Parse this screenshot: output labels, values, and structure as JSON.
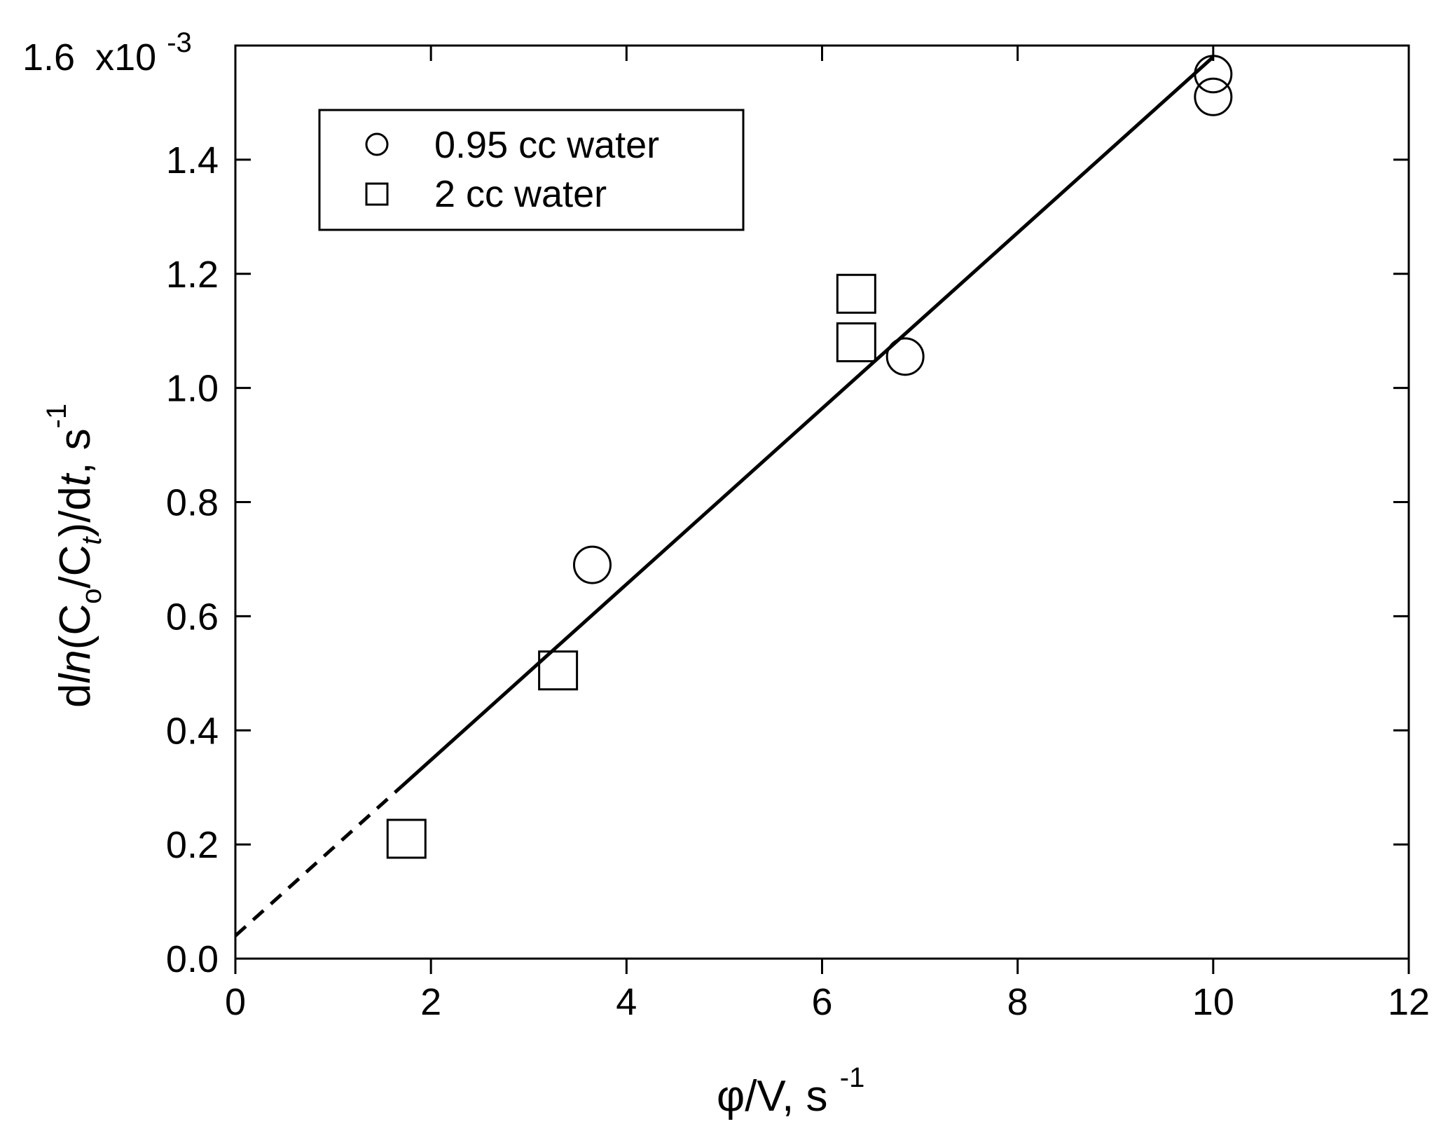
{
  "chart_data": {
    "type": "scatter",
    "xlabel": "φ/V, s",
    "xlabel_exponent": "-1",
    "ylabel_parts": {
      "d": "d",
      "ln": "ln",
      "open_c": "(C",
      "o_sub": "o",
      "slash_c": "/C",
      "t_sub": "t",
      "close_d": ")/d",
      "t": "t",
      "comma_s": ", s",
      "exponent": "-1"
    },
    "y_multiplier_label": "x10",
    "y_multiplier_exponent": "-3",
    "xlim": [
      0,
      12
    ],
    "ylim": [
      0.0,
      1.6
    ],
    "x_ticks": [
      "0",
      "2",
      "4",
      "6",
      "8",
      "10",
      "12"
    ],
    "y_ticks": [
      "0.0",
      "0.2",
      "0.4",
      "0.6",
      "0.8",
      "1.0",
      "1.2",
      "1.4",
      "1.6"
    ],
    "grid": false,
    "legend_placement": "top-left",
    "series": [
      {
        "name": "0.95 cc water",
        "marker": "circle",
        "points": [
          [
            3.65,
            0.69
          ],
          [
            6.85,
            1.055
          ],
          [
            10.0,
            1.55
          ],
          [
            10.0,
            1.51
          ]
        ]
      },
      {
        "name": "2 cc water",
        "marker": "square",
        "points": [
          [
            1.75,
            0.21
          ],
          [
            3.3,
            0.505
          ],
          [
            6.35,
            1.165
          ],
          [
            6.35,
            1.08
          ]
        ]
      }
    ],
    "fit_line": {
      "intercept": 0.04,
      "slope": 0.154,
      "solid_from_x": 1.7,
      "solid_to_x": 10.0,
      "dashed_from_x": 0.0,
      "dashed_to_x": 1.7
    }
  }
}
